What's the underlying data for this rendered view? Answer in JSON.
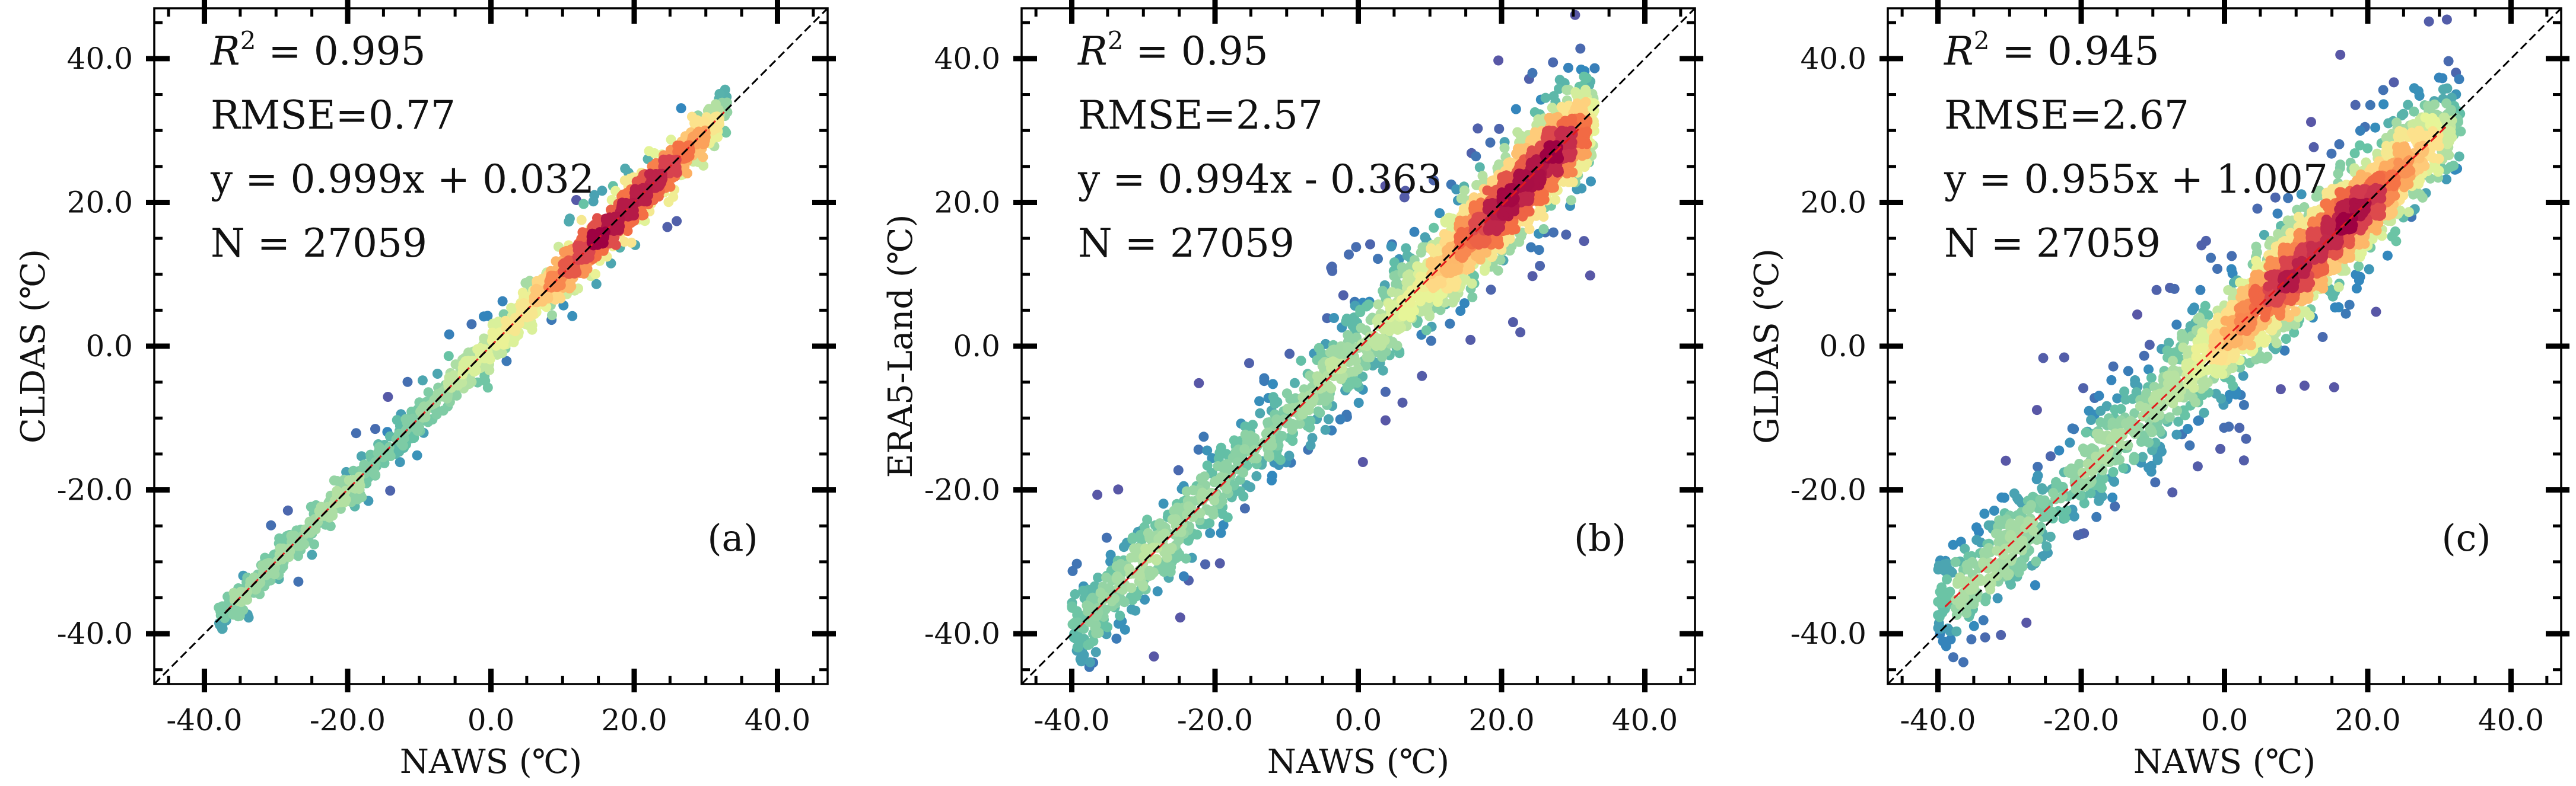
{
  "figure": {
    "colormap": [
      "#5e4fa2",
      "#3288bd",
      "#66c2a5",
      "#abdda4",
      "#e6f598",
      "#fee08b",
      "#fdae61",
      "#f46d43",
      "#d53e4f",
      "#9e0142"
    ],
    "one_to_one_color": "#000000",
    "fit_line_color": "#e31a1c"
  },
  "chart_data": [
    {
      "type": "scatter",
      "panel": "(a)",
      "xlabel": "NAWS (℃)",
      "ylabel": "CLDAS (℃)",
      "xlim": [
        -47,
        47
      ],
      "ylim": [
        -47,
        47
      ],
      "x_ticks": [
        -40,
        -20,
        0,
        20,
        40
      ],
      "y_ticks": [
        -40,
        -20,
        0,
        20,
        40
      ],
      "x_tick_labels": [
        "-40.0",
        "-20.0",
        "0.0",
        "20.0",
        "40.0"
      ],
      "y_tick_labels": [
        "-40.0",
        "-20.0",
        "0.0",
        "20.0",
        "40.0"
      ],
      "stats": {
        "r2": "0.995",
        "rmse": "0.77",
        "slope": "0.999",
        "op": "+",
        "intercept": "0.032",
        "n": "27059"
      },
      "stats_text": {
        "rmse": "RMSE=0.77",
        "equation": "y = 0.999x + 0.032",
        "n": "N = 27059"
      },
      "fit_line": {
        "slope": 0.999,
        "intercept": 0.032,
        "x_range": [
          -37,
          33
        ]
      },
      "one_to_one": true,
      "point_cloud": {
        "x_range": [
          -38,
          33
        ],
        "density_peak_x": 18,
        "scatter_sd": 1.1,
        "outlier_sd": 3.0,
        "count_drawn": 2400
      }
    },
    {
      "type": "scatter",
      "panel": "(b)",
      "xlabel": "NAWS (℃)",
      "ylabel": "ERA5-Land (℃)",
      "xlim": [
        -47,
        47
      ],
      "ylim": [
        -47,
        47
      ],
      "x_ticks": [
        -40,
        -20,
        0,
        20,
        40
      ],
      "y_ticks": [
        -40,
        -20,
        0,
        20,
        40
      ],
      "x_tick_labels": [
        "-40.0",
        "-20.0",
        "0.0",
        "20.0",
        "40.0"
      ],
      "y_tick_labels": [
        "-40.0",
        "-20.0",
        "0.0",
        "20.0",
        "40.0"
      ],
      "stats": {
        "r2": "0.95",
        "rmse": "2.57",
        "slope": "0.994",
        "op": "-",
        "intercept": "0.363",
        "n": "27059"
      },
      "stats_text": {
        "rmse": "RMSE=2.57",
        "equation": "y = 0.994x - 0.363",
        "n": "N = 27059"
      },
      "fit_line": {
        "slope": 0.994,
        "intercept": -0.363,
        "x_range": [
          -39,
          31
        ]
      },
      "one_to_one": true,
      "point_cloud": {
        "x_range": [
          -40,
          33
        ],
        "density_peak_x": 24,
        "scatter_sd": 3.0,
        "outlier_sd": 7.0,
        "count_drawn": 2600
      }
    },
    {
      "type": "scatter",
      "panel": "(c)",
      "xlabel": "NAWS (℃)",
      "ylabel": "GLDAS (℃)",
      "xlim": [
        -47,
        47
      ],
      "ylim": [
        -47,
        47
      ],
      "x_ticks": [
        -40,
        -20,
        0,
        20,
        40
      ],
      "y_ticks": [
        -40,
        -20,
        0,
        20,
        40
      ],
      "x_tick_labels": [
        "-40.0",
        "-20.0",
        "0.0",
        "20.0",
        "40.0"
      ],
      "y_tick_labels": [
        "-40.0",
        "-20.0",
        "0.0",
        "20.0",
        "40.0"
      ],
      "stats": {
        "r2": "0.945",
        "rmse": "2.67",
        "slope": "0.955",
        "op": "+",
        "intercept": "1.007",
        "n": "27059"
      },
      "stats_text": {
        "rmse": "RMSE=2.67",
        "equation": "y = 0.955x + 1.007",
        "n": "N = 27059"
      },
      "fit_line": {
        "slope": 0.955,
        "intercept": 1.007,
        "x_range": [
          -39,
          31
        ]
      },
      "one_to_one": true,
      "point_cloud": {
        "x_range": [
          -40,
          33
        ],
        "density_peak_x": 14,
        "scatter_sd": 3.2,
        "outlier_sd": 7.5,
        "count_drawn": 2600
      }
    }
  ]
}
